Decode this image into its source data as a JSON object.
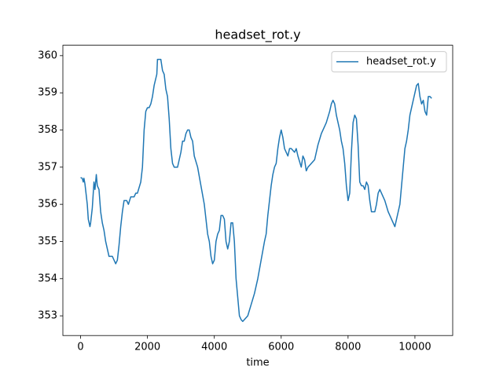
{
  "chart_data": {
    "type": "line",
    "title": "headset_rot.y",
    "xlabel": "time",
    "x": [
      0,
      50,
      80,
      100,
      130,
      200,
      230,
      280,
      300,
      350,
      400,
      430,
      470,
      500,
      550,
      600,
      650,
      700,
      750,
      800,
      850,
      950,
      1000,
      1050,
      1100,
      1150,
      1200,
      1250,
      1300,
      1380,
      1430,
      1500,
      1600,
      1650,
      1700,
      1800,
      1850,
      1900,
      1950,
      2000,
      2050,
      2100,
      2150,
      2200,
      2280,
      2300,
      2400,
      2450,
      2500,
      2550,
      2600,
      2650,
      2700,
      2750,
      2800,
      2900,
      2950,
      3000,
      3050,
      3100,
      3150,
      3200,
      3250,
      3300,
      3350,
      3400,
      3500,
      3600,
      3700,
      3800,
      3850,
      3900,
      3950,
      4000,
      4050,
      4100,
      4150,
      4200,
      4250,
      4300,
      4350,
      4400,
      4450,
      4500,
      4550,
      4600,
      4650,
      4700,
      4750,
      4800,
      4850,
      4900,
      5000,
      5100,
      5200,
      5300,
      5400,
      5500,
      5550,
      5600,
      5650,
      5700,
      5750,
      5800,
      5850,
      5900,
      5950,
      6000,
      6050,
      6100,
      6150,
      6200,
      6250,
      6300,
      6400,
      6450,
      6500,
      6600,
      6650,
      6700,
      6750,
      6800,
      6900,
      7000,
      7100,
      7200,
      7300,
      7350,
      7450,
      7500,
      7550,
      7600,
      7650,
      7700,
      7750,
      7800,
      7850,
      7900,
      7950,
      8000,
      8050,
      8100,
      8150,
      8200,
      8250,
      8300,
      8350,
      8400,
      8450,
      8500,
      8550,
      8600,
      8650,
      8700,
      8800,
      8850,
      8900,
      8950,
      9000,
      9100,
      9200,
      9300,
      9350,
      9400,
      9450,
      9500,
      9550,
      9600,
      9650,
      9700,
      9750,
      9800,
      9850,
      9900,
      9950,
      10000,
      10050,
      10100,
      10150,
      10200,
      10250,
      10300,
      10350,
      10400,
      10450,
      10500
    ],
    "series": [
      {
        "name": "headset_rot.y",
        "color": "#1f77b4",
        "values": [
          356.72,
          356.7,
          356.6,
          356.7,
          356.55,
          356.0,
          355.6,
          355.4,
          355.5,
          355.9,
          356.6,
          356.4,
          356.8,
          356.5,
          356.4,
          355.8,
          355.5,
          355.3,
          355.0,
          354.8,
          354.6,
          354.6,
          354.5,
          354.4,
          354.5,
          354.9,
          355.4,
          355.8,
          356.1,
          356.1,
          356.0,
          356.2,
          356.2,
          356.3,
          356.3,
          356.6,
          357.0,
          358.0,
          358.5,
          358.6,
          358.6,
          358.7,
          358.9,
          359.2,
          359.5,
          359.9,
          359.9,
          359.6,
          359.5,
          359.1,
          358.9,
          358.3,
          357.5,
          357.1,
          357.0,
          357.0,
          357.2,
          357.4,
          357.7,
          357.7,
          357.9,
          358.0,
          358.0,
          357.8,
          357.7,
          357.3,
          357.0,
          356.5,
          356.0,
          355.2,
          355.0,
          354.6,
          354.4,
          354.5,
          355.0,
          355.2,
          355.3,
          355.7,
          355.7,
          355.6,
          355.0,
          354.8,
          355.0,
          355.5,
          355.5,
          355.0,
          354.0,
          353.5,
          353.0,
          352.9,
          352.85,
          352.9,
          353.0,
          353.3,
          353.6,
          354.0,
          354.5,
          355.0,
          355.2,
          355.7,
          356.1,
          356.5,
          356.8,
          357.0,
          357.1,
          357.5,
          357.8,
          358.0,
          357.8,
          357.5,
          357.4,
          357.3,
          357.5,
          357.5,
          357.4,
          357.5,
          357.3,
          357.0,
          357.3,
          357.2,
          356.9,
          357.0,
          357.1,
          357.2,
          357.6,
          357.9,
          358.1,
          358.2,
          358.5,
          358.7,
          358.8,
          358.7,
          358.4,
          358.2,
          358.0,
          357.7,
          357.5,
          357.1,
          356.5,
          356.1,
          356.3,
          357.4,
          358.2,
          358.4,
          358.3,
          357.6,
          356.6,
          356.5,
          356.5,
          356.4,
          356.6,
          356.5,
          356.1,
          355.8,
          355.8,
          356.0,
          356.3,
          356.4,
          356.3,
          356.1,
          355.8,
          355.6,
          355.5,
          355.4,
          355.6,
          355.8,
          356.0,
          356.5,
          357.0,
          357.5,
          357.7,
          358.0,
          358.4,
          358.6,
          358.8,
          359.0,
          359.2,
          359.25,
          358.9,
          358.7,
          358.8,
          358.5,
          358.4,
          358.9,
          358.9,
          358.85
        ]
      }
    ],
    "xlim": [
      -530,
      11130
    ],
    "ylim": [
      352.47,
      360.28
    ],
    "xticks": [
      0,
      2000,
      4000,
      6000,
      8000,
      10000
    ],
    "yticks": [
      353,
      354,
      355,
      356,
      357,
      358,
      359,
      360
    ],
    "legend": "upper right"
  }
}
